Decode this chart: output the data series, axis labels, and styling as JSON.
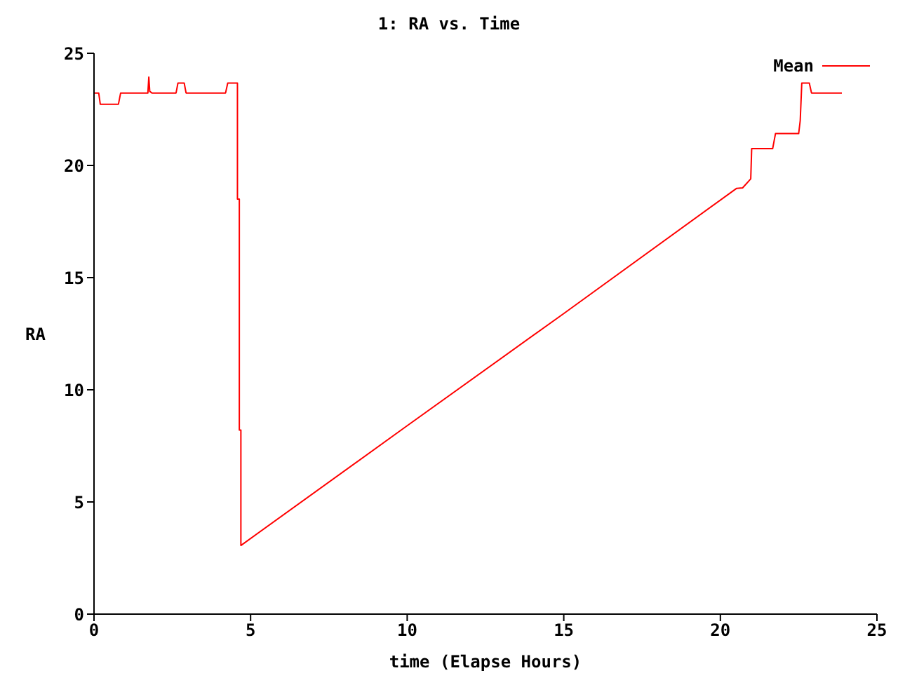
{
  "chart_data": {
    "type": "line",
    "title": "1: RA vs. Time",
    "xlabel": "time (Elapse Hours)",
    "ylabel": "RA",
    "x": [
      0,
      0.15,
      0.2,
      0.78,
      0.85,
      1.72,
      1.75,
      1.78,
      1.85,
      2.62,
      2.68,
      2.88,
      2.94,
      4.2,
      4.27,
      4.58,
      4.58,
      4.64,
      4.64,
      4.69,
      4.69,
      10,
      15,
      20.52,
      20.71,
      20.97,
      21.0,
      21.67,
      21.76,
      22.5,
      22.55,
      22.6,
      22.84,
      22.91,
      23.88
    ],
    "series": [
      {
        "name": "Mean",
        "color": "#ff0000",
        "values": [
          23.23,
          23.23,
          22.73,
          22.73,
          23.23,
          23.23,
          23.94,
          23.3,
          23.23,
          23.23,
          23.67,
          23.67,
          23.23,
          23.23,
          23.67,
          23.67,
          18.5,
          18.5,
          8.2,
          8.2,
          3.06,
          8.4,
          13.4,
          18.98,
          19.0,
          19.4,
          20.75,
          20.75,
          21.42,
          21.42,
          22.0,
          23.67,
          23.67,
          23.23,
          23.23
        ]
      }
    ],
    "xlim": [
      0,
      25
    ],
    "xticks": [
      0,
      5,
      10,
      15,
      20,
      25
    ],
    "ylim": [
      0,
      25
    ],
    "yticks": [
      0,
      5,
      10,
      15,
      20,
      25
    ],
    "grid": false,
    "legend": "top right",
    "marker": "none",
    "line_style": "solid"
  }
}
